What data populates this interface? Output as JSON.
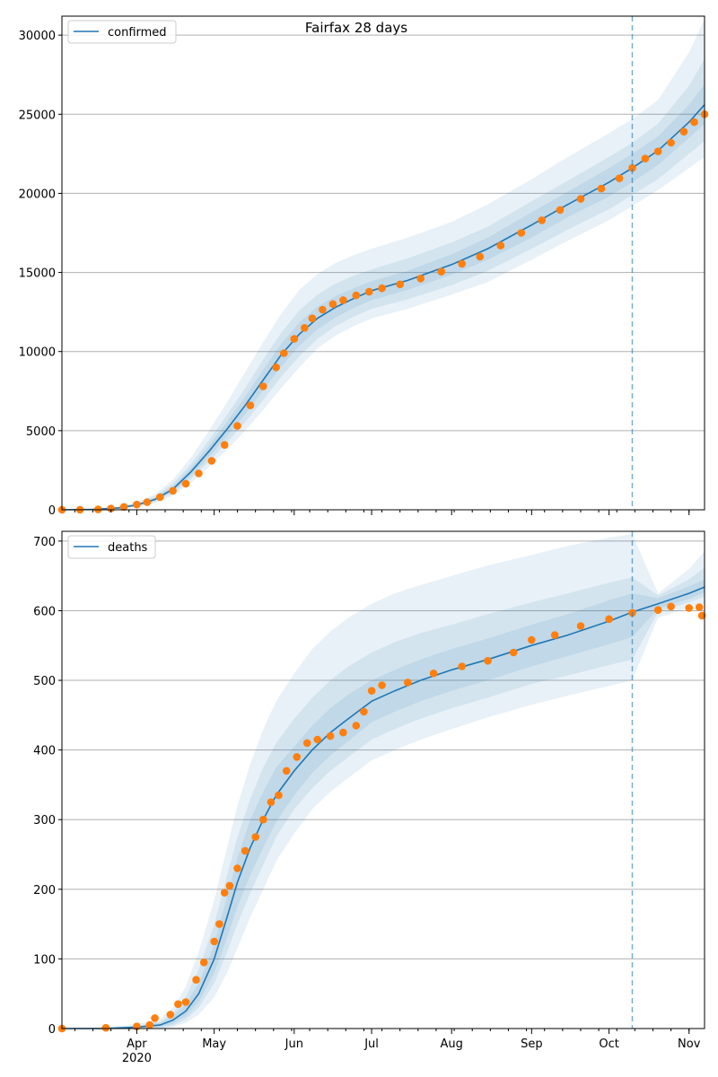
{
  "figure": {
    "title": "Fairfax 28 days"
  },
  "colors": {
    "model_line": "#1f77b4",
    "band": "#1f77b4",
    "observed": "#ff7f0e",
    "grid": "#b0b0b0",
    "forecast_line": "#1f77b4"
  },
  "x_axis": {
    "month_labels": [
      "Apr",
      "May",
      "Jun",
      "Jul",
      "Aug",
      "Sep",
      "Oct",
      "Nov"
    ],
    "year_label": "2020"
  },
  "chart_data": [
    {
      "type": "line",
      "legend": "confirmed",
      "legend_position": "top-left",
      "x_range": [
        "2020-03-03",
        "2020-11-07"
      ],
      "forecast_start": "2020-10-10",
      "ylim": [
        0,
        31200
      ],
      "yticks": [
        0,
        5000,
        10000,
        15000,
        20000,
        25000,
        30000
      ],
      "grid": "horizontal",
      "model": {
        "x": [
          "2020-03-03",
          "2020-03-15",
          "2020-03-25",
          "2020-04-01",
          "2020-04-08",
          "2020-04-15",
          "2020-04-22",
          "2020-04-29",
          "2020-05-06",
          "2020-05-13",
          "2020-05-20",
          "2020-05-27",
          "2020-06-03",
          "2020-06-10",
          "2020-06-17",
          "2020-06-24",
          "2020-07-01",
          "2020-07-15",
          "2020-08-01",
          "2020-08-15",
          "2020-09-01",
          "2020-09-15",
          "2020-10-01",
          "2020-10-10",
          "2020-10-20",
          "2020-11-01",
          "2020-11-07"
        ],
        "y": [
          0,
          20,
          120,
          300,
          650,
          1300,
          2400,
          3700,
          5100,
          6600,
          8200,
          9800,
          11100,
          12100,
          12800,
          13350,
          13850,
          14500,
          15500,
          16500,
          18000,
          19300,
          20700,
          21600,
          22700,
          24500,
          25600
        ],
        "bands": [
          {
            "lower": [
              0,
              5,
              60,
              180,
              420,
              900,
              1700,
              2700,
              3800,
              5000,
              6300,
              7700,
              9000,
              10200,
              11000,
              11600,
              12100,
              12700,
              13600,
              14400,
              15800,
              17000,
              18300,
              19200,
              20200,
              21600,
              22300
            ],
            "upper": [
              0,
              40,
              220,
              500,
              1000,
              1900,
              3300,
              5000,
              6800,
              8700,
              10600,
              12400,
              13900,
              14900,
              15600,
              16100,
              16500,
              17200,
              18200,
              19300,
              20900,
              22300,
              23800,
              24700,
              25900,
              28900,
              31000
            ]
          },
          {
            "lower": [
              0,
              8,
              80,
              220,
              500,
              1050,
              1950,
              3050,
              4250,
              5550,
              6950,
              8400,
              9700,
              10800,
              11600,
              12200,
              12700,
              13300,
              14200,
              15100,
              16500,
              17700,
              19000,
              19900,
              20900,
              22500,
              23300
            ],
            "upper": [
              0,
              32,
              180,
              420,
              860,
              1650,
              2900,
              4400,
              6000,
              7700,
              9500,
              11200,
              12600,
              13600,
              14300,
              14800,
              15200,
              15900,
              16900,
              17900,
              19500,
              20800,
              22300,
              23200,
              24400,
              26800,
              28500
            ]
          },
          {
            "lower": [
              0,
              12,
              95,
              250,
              560,
              1150,
              2150,
              3350,
              4650,
              6050,
              7550,
              9050,
              10350,
              11400,
              12150,
              12750,
              13250,
              13900,
              14850,
              15800,
              17200,
              18500,
              19800,
              20700,
              21800,
              23500,
              24400
            ],
            "upper": [
              0,
              28,
              150,
              360,
              760,
              1480,
              2650,
              4050,
              5550,
              7150,
              8850,
              10500,
              11850,
              12850,
              13500,
              14000,
              14450,
              15100,
              16150,
              17200,
              18800,
              20100,
              21600,
              22500,
              23600,
              25600,
              26900
            ]
          }
        ]
      },
      "observed": {
        "x": [
          "2020-03-03",
          "2020-03-10",
          "2020-03-17",
          "2020-03-22",
          "2020-03-27",
          "2020-04-01",
          "2020-04-05",
          "2020-04-10",
          "2020-04-15",
          "2020-04-20",
          "2020-04-25",
          "2020-04-30",
          "2020-05-05",
          "2020-05-10",
          "2020-05-15",
          "2020-05-20",
          "2020-05-25",
          "2020-05-28",
          "2020-06-01",
          "2020-06-05",
          "2020-06-08",
          "2020-06-12",
          "2020-06-16",
          "2020-06-20",
          "2020-06-25",
          "2020-06-30",
          "2020-07-05",
          "2020-07-12",
          "2020-07-20",
          "2020-07-28",
          "2020-08-05",
          "2020-08-12",
          "2020-08-20",
          "2020-08-28",
          "2020-09-05",
          "2020-09-12",
          "2020-09-20",
          "2020-09-28",
          "2020-10-05",
          "2020-10-10",
          "2020-10-15",
          "2020-10-20",
          "2020-10-25",
          "2020-10-30",
          "2020-11-03",
          "2020-11-07"
        ],
        "y": [
          1,
          4,
          20,
          80,
          180,
          330,
          480,
          800,
          1200,
          1650,
          2300,
          3100,
          4100,
          5300,
          6600,
          7800,
          9000,
          9900,
          10800,
          11500,
          12100,
          12650,
          13000,
          13250,
          13550,
          13780,
          14000,
          14250,
          14620,
          15050,
          15550,
          16000,
          16700,
          17500,
          18300,
          18950,
          19650,
          20300,
          20950,
          21600,
          22200,
          22650,
          23200,
          23900,
          24500,
          25000
        ]
      }
    },
    {
      "type": "line",
      "legend": "deaths",
      "legend_position": "top-left",
      "x_range": [
        "2020-03-03",
        "2020-11-07"
      ],
      "forecast_start": "2020-10-10",
      "ylim": [
        0,
        714
      ],
      "yticks": [
        0,
        100,
        200,
        300,
        400,
        500,
        600,
        700
      ],
      "grid": "horizontal",
      "model": {
        "x": [
          "2020-03-03",
          "2020-03-20",
          "2020-04-01",
          "2020-04-10",
          "2020-04-15",
          "2020-04-20",
          "2020-04-25",
          "2020-05-01",
          "2020-05-06",
          "2020-05-10",
          "2020-05-15",
          "2020-05-20",
          "2020-05-25",
          "2020-06-01",
          "2020-06-08",
          "2020-06-15",
          "2020-06-22",
          "2020-07-01",
          "2020-07-10",
          "2020-07-20",
          "2020-08-01",
          "2020-08-15",
          "2020-09-01",
          "2020-09-15",
          "2020-10-01",
          "2020-10-10",
          "2020-10-20",
          "2020-11-01",
          "2020-11-07"
        ],
        "y": [
          0,
          0,
          2,
          5,
          12,
          25,
          50,
          100,
          160,
          210,
          260,
          300,
          335,
          370,
          400,
          425,
          445,
          470,
          485,
          500,
          515,
          530,
          550,
          565,
          585,
          598,
          610,
          625,
          634
        ],
        "bands": [
          {
            "lower": [
              0,
              0,
              0,
              0,
              2,
              8,
              20,
              45,
              80,
              115,
              160,
              200,
              240,
              280,
              315,
              340,
              360,
              385,
              400,
              415,
              430,
              447,
              465,
              478,
              492,
              500,
              590,
              604,
              610
            ],
            "upper": [
              0,
              2,
              6,
              14,
              30,
              60,
              110,
              185,
              260,
              320,
              380,
              430,
              470,
              510,
              545,
              570,
              590,
              610,
              625,
              637,
              650,
              665,
              680,
              693,
              705,
              710,
              625,
              660,
              685
            ]
          },
          {
            "lower": [
              0,
              0,
              0,
              1,
              4,
              13,
              30,
              65,
              110,
              150,
              195,
              235,
              275,
              315,
              345,
              370,
              390,
              415,
              430,
              445,
              460,
              475,
              495,
              507,
              522,
              530,
              598,
              612,
              620
            ],
            "upper": [
              0,
              1,
              4,
              10,
              22,
              45,
              85,
              150,
              220,
              275,
              330,
              375,
              410,
              445,
              475,
              500,
              520,
              540,
              555,
              568,
              580,
              595,
              612,
              625,
              640,
              648,
              622,
              645,
              662
            ]
          },
          {
            "lower": [
              0,
              0,
              1,
              2,
              7,
              18,
              38,
              80,
              130,
              175,
              220,
              260,
              297,
              335,
              367,
              392,
              413,
              440,
              455,
              470,
              485,
              500,
              520,
              535,
              552,
              562,
              603,
              617,
              626
            ],
            "upper": [
              0,
              1,
              3,
              8,
              18,
              35,
              65,
              120,
              190,
              245,
              300,
              340,
              375,
              405,
              435,
              460,
              480,
              500,
              515,
              530,
              545,
              560,
              580,
              595,
              615,
              625,
              618,
              635,
              645
            ]
          }
        ]
      },
      "observed": {
        "x": [
          "2020-03-03",
          "2020-03-20",
          "2020-04-01",
          "2020-04-06",
          "2020-04-08",
          "2020-04-14",
          "2020-04-17",
          "2020-04-20",
          "2020-04-24",
          "2020-04-27",
          "2020-05-01",
          "2020-05-03",
          "2020-05-05",
          "2020-05-07",
          "2020-05-10",
          "2020-05-13",
          "2020-05-17",
          "2020-05-20",
          "2020-05-23",
          "2020-05-26",
          "2020-05-29",
          "2020-06-02",
          "2020-06-06",
          "2020-06-10",
          "2020-06-15",
          "2020-06-20",
          "2020-06-25",
          "2020-06-28",
          "2020-07-01",
          "2020-07-05",
          "2020-07-15",
          "2020-07-25",
          "2020-08-05",
          "2020-08-15",
          "2020-08-25",
          "2020-09-01",
          "2020-09-10",
          "2020-09-20",
          "2020-10-01",
          "2020-10-10",
          "2020-10-20",
          "2020-10-25",
          "2020-11-01",
          "2020-11-05",
          "2020-11-06"
        ],
        "y": [
          0,
          1,
          3,
          5,
          15,
          20,
          35,
          38,
          70,
          95,
          125,
          150,
          195,
          205,
          230,
          255,
          275,
          300,
          325,
          335,
          370,
          390,
          410,
          415,
          420,
          425,
          435,
          455,
          485,
          493,
          497,
          510,
          520,
          528,
          540,
          558,
          565,
          578,
          588,
          597,
          601,
          606,
          604,
          605,
          593
        ]
      }
    }
  ]
}
